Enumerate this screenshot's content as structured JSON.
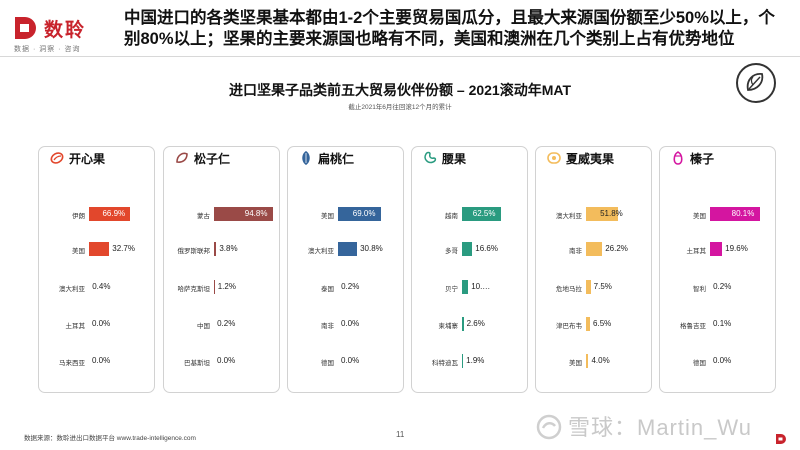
{
  "brand": {
    "name": "数聆",
    "subtitle": "数据 · 洞察 · 咨询"
  },
  "headline": "中国进口的各类坚果基本都由1-2个主要贸易国瓜分，且最大来源国份额至少50%以上，个别80%以上；坚果的主要来源国也略有不同，美国和澳洲在几个类别上占有优势地位",
  "page_number": "11",
  "footer": {
    "source": "数据来源：数聆进出口数据平台 www.trade-intelligence.com"
  },
  "watermark": {
    "text": "雪球：Martin_Wu"
  },
  "chart_data": {
    "type": "bar",
    "title": "进口坚果子品类前五大贸易伙伴份额 – 2021滚动年MAT",
    "subtitle": "截止2021年6月往回滚12个月的累计",
    "value_unit": "%",
    "xlim": [
      0,
      100
    ],
    "panels": [
      {
        "category": "开心果",
        "icon": "pistachio-icon",
        "color": "#e2472c",
        "partners": [
          {
            "country": "伊朗",
            "value": 66.9,
            "label": "66.9%"
          },
          {
            "country": "美国",
            "value": 32.7,
            "label": "32.7%"
          },
          {
            "country": "澳大利亚",
            "value": 0.4,
            "label": "0.4%"
          },
          {
            "country": "土耳其",
            "value": 0.0,
            "label": "0.0%"
          },
          {
            "country": "马来西亚",
            "value": 0.0,
            "label": "0.0%"
          }
        ]
      },
      {
        "category": "松子仁",
        "icon": "pine-nut-icon",
        "color": "#9a4a47",
        "partners": [
          {
            "country": "蒙古",
            "value": 94.8,
            "label": "94.8%"
          },
          {
            "country": "俄罗斯联邦",
            "value": 3.8,
            "label": "3.8%"
          },
          {
            "country": "哈萨克斯坦",
            "value": 1.2,
            "label": "1.2%"
          },
          {
            "country": "中国",
            "value": 0.2,
            "label": "0.2%"
          },
          {
            "country": "巴基斯坦",
            "value": 0.0,
            "label": "0.0%"
          }
        ]
      },
      {
        "category": "扁桃仁",
        "icon": "almond-icon",
        "color": "#35659b",
        "partners": [
          {
            "country": "美国",
            "value": 69.0,
            "label": "69.0%"
          },
          {
            "country": "澳大利亚",
            "value": 30.8,
            "label": "30.8%"
          },
          {
            "country": "泰国",
            "value": 0.2,
            "label": "0.2%"
          },
          {
            "country": "南非",
            "value": 0.0,
            "label": "0.0%"
          },
          {
            "country": "德国",
            "value": 0.0,
            "label": "0.0%"
          }
        ]
      },
      {
        "category": "腰果",
        "icon": "cashew-icon",
        "color": "#2a9b80",
        "partners": [
          {
            "country": "越南",
            "value": 62.5,
            "label": "62.5%"
          },
          {
            "country": "多哥",
            "value": 16.6,
            "label": "16.6%"
          },
          {
            "country": "贝宁",
            "value": 10.0,
            "label": "10.…"
          },
          {
            "country": "柬埔寨",
            "value": 2.6,
            "label": "2.6%"
          },
          {
            "country": "科特迪瓦",
            "value": 1.9,
            "label": "1.9%"
          }
        ]
      },
      {
        "category": "夏威夷果",
        "icon": "macadamia-icon",
        "color": "#f3bc5c",
        "partners": [
          {
            "country": "澳大利亚",
            "value": 51.8,
            "label": "51.8%"
          },
          {
            "country": "南非",
            "value": 26.2,
            "label": "26.2%"
          },
          {
            "country": "危地马拉",
            "value": 7.5,
            "label": "7.5%"
          },
          {
            "country": "津巴布韦",
            "value": 6.5,
            "label": "6.5%"
          },
          {
            "country": "美国",
            "value": 4.0,
            "label": "4.0%"
          }
        ]
      },
      {
        "category": "榛子",
        "icon": "hazelnut-icon",
        "color": "#d415a0",
        "partners": [
          {
            "country": "美国",
            "value": 80.1,
            "label": "80.1%"
          },
          {
            "country": "土耳其",
            "value": 19.6,
            "label": "19.6%"
          },
          {
            "country": "智利",
            "value": 0.2,
            "label": "0.2%"
          },
          {
            "country": "格鲁吉亚",
            "value": 0.1,
            "label": "0.1%"
          },
          {
            "country": "德国",
            "value": 0.0,
            "label": "0.0%"
          }
        ]
      }
    ]
  }
}
